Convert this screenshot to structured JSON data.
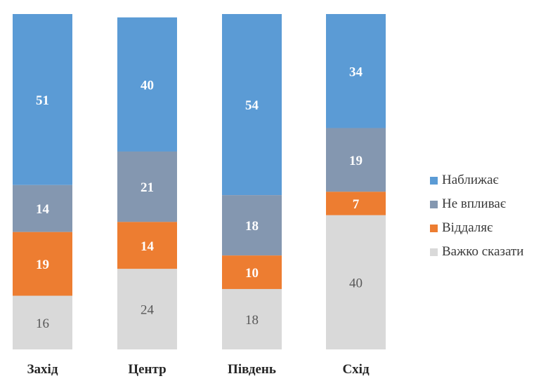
{
  "chart_data": {
    "type": "bar",
    "stacked": true,
    "categories": [
      "Захід",
      "Центр",
      "Південь",
      "Схід"
    ],
    "series": [
      {
        "name": "Наближає",
        "color": "#5B9BD5",
        "label_color": "#ffffff",
        "values": [
          51,
          40,
          54,
          34
        ]
      },
      {
        "name": "Не впливає",
        "color": "#8497B0",
        "label_color": "#ffffff",
        "values": [
          14,
          21,
          18,
          19
        ]
      },
      {
        "name": "Віддаляє",
        "color": "#ED7D31",
        "label_color": "#ffffff",
        "values": [
          19,
          14,
          10,
          7
        ]
      },
      {
        "name": "Важко сказати",
        "color": "#D9D9D9",
        "label_color": "#595959",
        "values": [
          16,
          24,
          18,
          40
        ]
      }
    ],
    "legend_position": "right",
    "title": "",
    "xlabel": "",
    "ylabel": ""
  }
}
